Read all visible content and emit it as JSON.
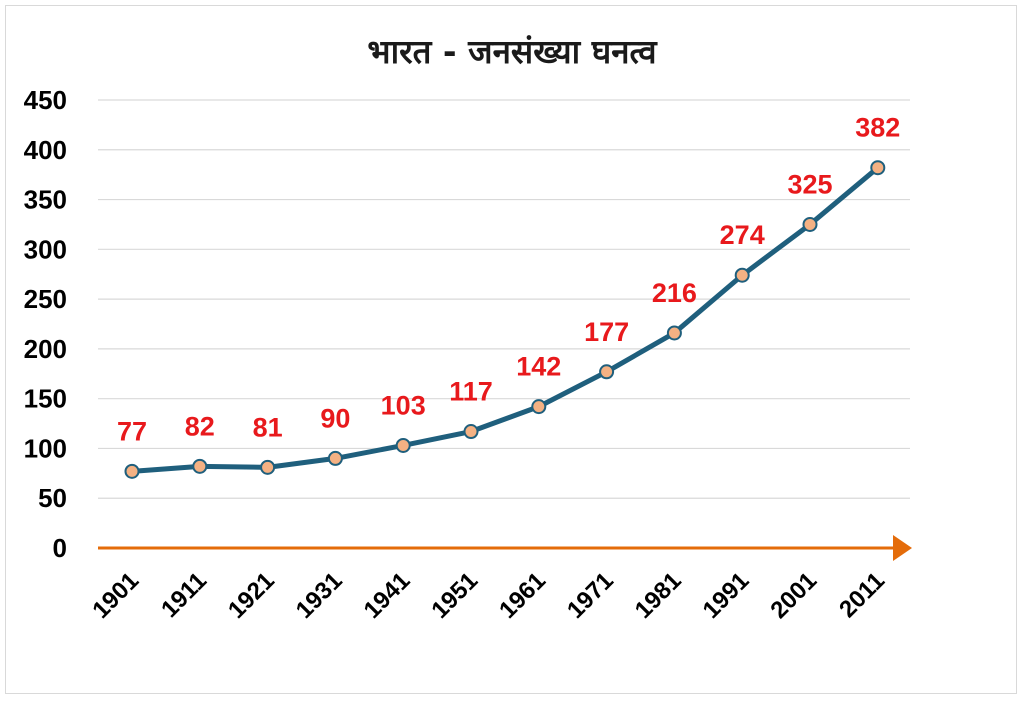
{
  "chart_data": {
    "type": "line",
    "title": "भारत -  जनसंख्या घनत्व",
    "xlabel": "",
    "ylabel": "",
    "categories": [
      "1901",
      "1911",
      "1921",
      "1931",
      "1941",
      "1951",
      "1961",
      "1971",
      "1981",
      "1991",
      "2001",
      "2011"
    ],
    "series": [
      {
        "values": [
          77,
          82,
          81,
          90,
          103,
          117,
          142,
          177,
          216,
          274,
          325,
          382
        ]
      }
    ],
    "ylim": [
      0,
      450
    ],
    "yticks": [
      "0",
      "50",
      "100",
      "150",
      "200",
      "250",
      "300",
      "350",
      "400",
      "450"
    ],
    "grid": true,
    "data_labels": true,
    "colors": {
      "line": "#1f5f7d",
      "marker_fill": "#f4b183",
      "marker_edge": "#1f5f7d",
      "axis": "#e46c0a",
      "data_label": "#e8191c",
      "grid": "#d9d9d9"
    }
  }
}
